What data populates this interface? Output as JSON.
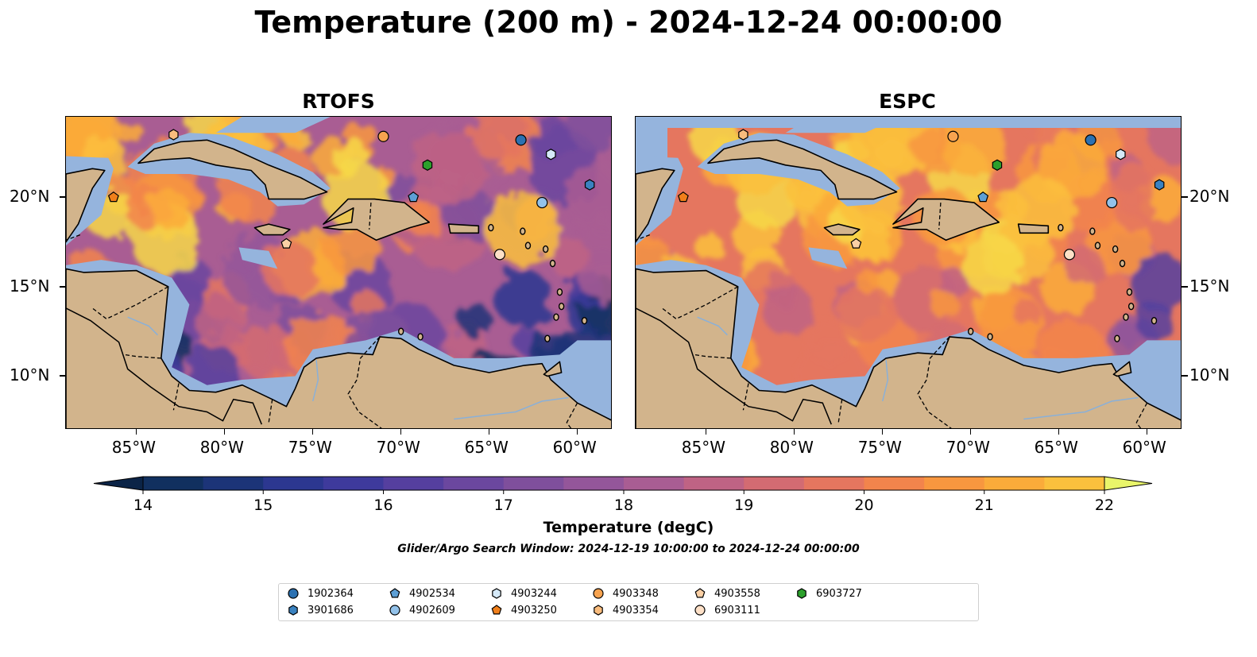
{
  "title": "Temperature (200 m) - 2024-12-24 00:00:00",
  "panels": [
    {
      "id": "rtofs",
      "title": "RTOFS"
    },
    {
      "id": "espc",
      "title": "ESPC"
    }
  ],
  "axes": {
    "lon_ticks": [
      "85°W",
      "80°W",
      "75°W",
      "70°W",
      "65°W",
      "60°W"
    ],
    "lat_ticks": [
      "20°N",
      "15°N",
      "10°N"
    ],
    "lon_range": [
      -89,
      -58
    ],
    "lat_range": [
      7,
      24.5
    ]
  },
  "colorbar": {
    "label": "Temperature (degC)",
    "ticks": [
      "14",
      "15",
      "16",
      "17",
      "18",
      "19",
      "20",
      "21",
      "22"
    ],
    "range": [
      14,
      22
    ],
    "step": 0.5,
    "extend": "both",
    "colors": [
      "#0b2447",
      "#11305f",
      "#1c3478",
      "#2c3790",
      "#3e3a9c",
      "#553f9f",
      "#6b479f",
      "#7f4f9c",
      "#94569a",
      "#a95d93",
      "#bf6384",
      "#d36b72",
      "#e5765f",
      "#f2844c",
      "#f8973f",
      "#fbab3a",
      "#fbc03d",
      "#f7d848",
      "#e9f56a"
    ]
  },
  "map_colors": {
    "land": "#d2b48c",
    "shelf": "#95b4dd",
    "deep": "#05243a",
    "border": "#000000",
    "river": "#8ab0d8"
  },
  "subtitle": "Glider/Argo Search Window: 2024-12-19 10:00:00 to 2024-12-24 00:00:00",
  "floats": [
    {
      "id": "1902364",
      "shape": "circle",
      "color": "#2c71b1",
      "lon": -63.2,
      "lat": 23.2
    },
    {
      "id": "3901686",
      "shape": "hexagon",
      "color": "#3a82c0",
      "lon": -59.3,
      "lat": 20.7
    },
    {
      "id": "4902534",
      "shape": "pentagon",
      "color": "#5d9fd5",
      "lon": -69.3,
      "lat": 20.0
    },
    {
      "id": "4902609",
      "shape": "circle",
      "color": "#93c2ea",
      "lon": -62.0,
      "lat": 19.7
    },
    {
      "id": "4903244",
      "shape": "hexagon",
      "color": "#d5e9f8",
      "lon": -61.5,
      "lat": 22.4
    },
    {
      "id": "4903250",
      "shape": "pentagon",
      "color": "#f07f1b",
      "lon": -86.3,
      "lat": 20.0
    },
    {
      "id": "4903348",
      "shape": "circle",
      "color": "#f7a34f",
      "lon": -71.0,
      "lat": 23.4
    },
    {
      "id": "4903354",
      "shape": "hexagon",
      "color": "#f9bc7d",
      "lon": -82.9,
      "lat": 23.5
    },
    {
      "id": "4903558",
      "shape": "pentagon",
      "color": "#fbd0a5",
      "lon": -76.5,
      "lat": 17.4
    },
    {
      "id": "6903111",
      "shape": "circle",
      "color": "#fde0c7",
      "lon": -64.4,
      "lat": 16.8
    },
    {
      "id": "6903727",
      "shape": "hexagon",
      "color": "#2ca02c",
      "lon": -68.5,
      "lat": 21.8
    }
  ]
}
